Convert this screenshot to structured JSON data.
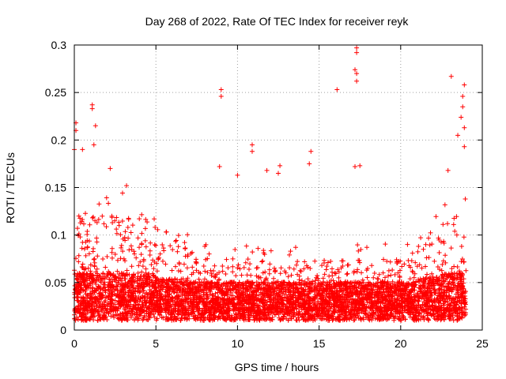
{
  "chart_data": {
    "type": "scatter",
    "title": "Day 268 of 2022, Rate Of TEC Index for receiver reyk",
    "xlabel": "GPS time / hours",
    "ylabel": "ROTI / TECUs",
    "xlim": [
      0,
      25
    ],
    "ylim": [
      0,
      0.3
    ],
    "xticks": [
      0,
      5,
      10,
      15,
      20,
      25
    ],
    "xtick_labels": [
      "0",
      "5",
      "10",
      "15",
      "20",
      "25"
    ],
    "yticks": [
      0,
      0.05,
      0.1,
      0.15,
      0.2,
      0.25,
      0.3
    ],
    "ytick_labels": [
      "0",
      "0.05",
      "0.1",
      "0.15",
      "0.2",
      "0.25",
      "0.3"
    ],
    "grid": true,
    "marker": "+",
    "series": [
      {
        "name": "ROTI",
        "color": "#ff0000",
        "x_range_hours": [
          0,
          24
        ],
        "typical_band": [
          0.01,
          0.06
        ],
        "notable_points": [
          {
            "x": 0.1,
            "y": 0.218
          },
          {
            "x": 0.1,
            "y": 0.21
          },
          {
            "x": 0.0,
            "y": 0.19
          },
          {
            "x": 0.5,
            "y": 0.19
          },
          {
            "x": 1.1,
            "y": 0.237
          },
          {
            "x": 1.1,
            "y": 0.233
          },
          {
            "x": 1.3,
            "y": 0.215
          },
          {
            "x": 1.2,
            "y": 0.195
          },
          {
            "x": 2.2,
            "y": 0.17
          },
          {
            "x": 3.2,
            "y": 0.152
          },
          {
            "x": 9.0,
            "y": 0.253
          },
          {
            "x": 9.0,
            "y": 0.246
          },
          {
            "x": 8.9,
            "y": 0.172
          },
          {
            "x": 10.0,
            "y": 0.163
          },
          {
            "x": 10.9,
            "y": 0.195
          },
          {
            "x": 10.9,
            "y": 0.188
          },
          {
            "x": 11.8,
            "y": 0.168
          },
          {
            "x": 12.6,
            "y": 0.173
          },
          {
            "x": 12.5,
            "y": 0.165
          },
          {
            "x": 14.5,
            "y": 0.188
          },
          {
            "x": 14.4,
            "y": 0.175
          },
          {
            "x": 16.1,
            "y": 0.253
          },
          {
            "x": 17.3,
            "y": 0.297
          },
          {
            "x": 17.3,
            "y": 0.292
          },
          {
            "x": 17.2,
            "y": 0.274
          },
          {
            "x": 17.3,
            "y": 0.27
          },
          {
            "x": 17.3,
            "y": 0.262
          },
          {
            "x": 17.2,
            "y": 0.172
          },
          {
            "x": 17.5,
            "y": 0.173
          },
          {
            "x": 22.9,
            "y": 0.168
          },
          {
            "x": 23.1,
            "y": 0.267
          },
          {
            "x": 23.9,
            "y": 0.258
          },
          {
            "x": 23.8,
            "y": 0.246
          },
          {
            "x": 23.8,
            "y": 0.235
          },
          {
            "x": 23.7,
            "y": 0.224
          },
          {
            "x": 23.9,
            "y": 0.213
          },
          {
            "x": 23.5,
            "y": 0.205
          },
          {
            "x": 23.9,
            "y": 0.193
          }
        ]
      }
    ]
  }
}
